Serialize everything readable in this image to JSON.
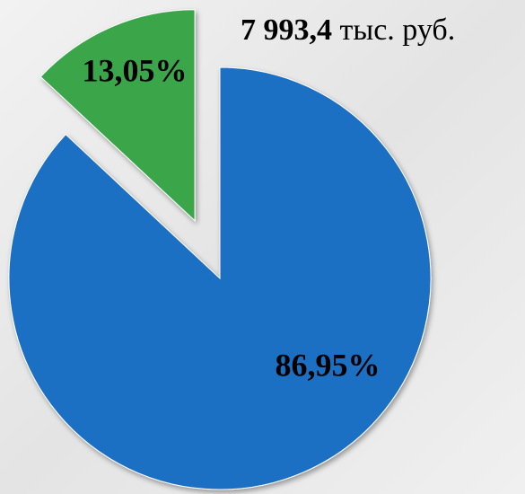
{
  "chart_data": {
    "type": "pie",
    "total": "7 993,4",
    "total_unit": "тыс. руб.",
    "values": [
      86.95,
      13.05
    ],
    "value_labels": [
      "86,95%",
      "13,05%"
    ],
    "colors": [
      "#1f6fc4",
      "#3aa64a"
    ],
    "explode": [
      false,
      true
    ]
  }
}
